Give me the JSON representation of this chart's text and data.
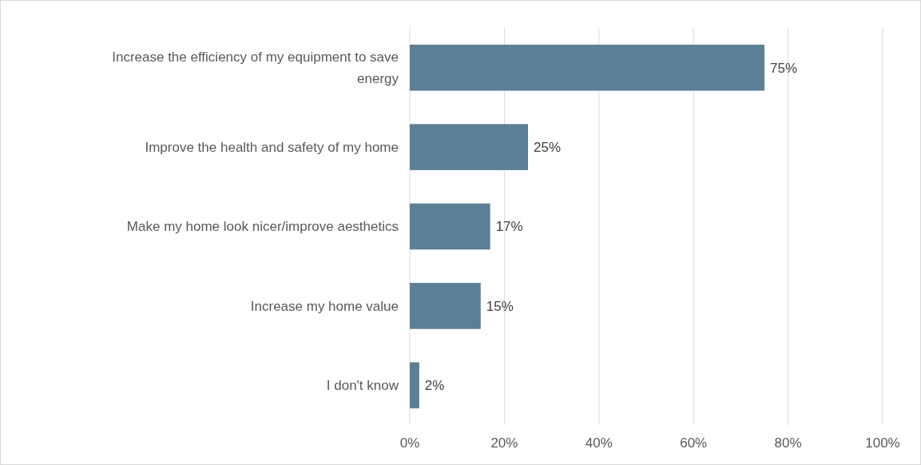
{
  "chart_data": {
    "type": "bar",
    "orientation": "horizontal",
    "categories": [
      "Increase the efficiency of my equipment to save energy",
      "Improve the health and safety of my home",
      "Make my home look nicer/improve aesthetics",
      "Increase my home value",
      "I don't know"
    ],
    "values": [
      75,
      25,
      17,
      15,
      2
    ],
    "value_labels": [
      "75%",
      "25%",
      "17%",
      "15%",
      "2%"
    ],
    "color": "#5b7f95",
    "xlim": [
      0,
      100
    ],
    "xticks": [
      {
        "value": 0,
        "label": "0%"
      },
      {
        "value": 20,
        "label": "20%"
      },
      {
        "value": 40,
        "label": "40%"
      },
      {
        "value": 60,
        "label": "60%"
      },
      {
        "value": 80,
        "label": "80%"
      },
      {
        "value": 100,
        "label": "100%"
      }
    ],
    "grid": "x"
  }
}
